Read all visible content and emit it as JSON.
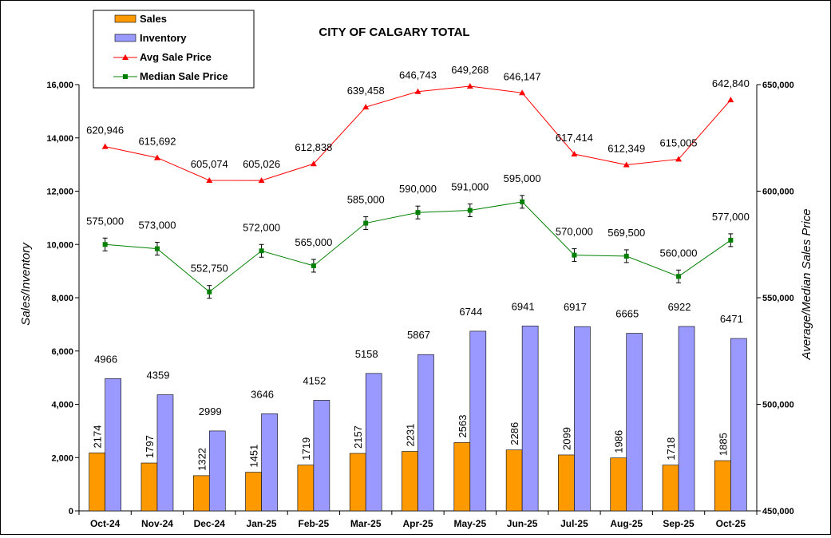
{
  "chart_data": {
    "type": "bar+line",
    "title": "CITY OF CALGARY TOTAL",
    "ylabel_left": "Sales/Inventory",
    "ylabel_right": "Average/Median Sales Price",
    "ylim_left": [
      0,
      16000
    ],
    "ylim_right": [
      450000,
      650000
    ],
    "yticks_left": [
      "0",
      "2,000",
      "4,000",
      "6,000",
      "8,000",
      "10,000",
      "12,000",
      "14,000",
      "16,000"
    ],
    "yticks_right": [
      "450,000",
      "500,000",
      "550,000",
      "600,000",
      "650,000"
    ],
    "categories": [
      "Oct-24",
      "Nov-24",
      "Dec-24",
      "Jan-25",
      "Feb-25",
      "Mar-25",
      "Apr-25",
      "May-25",
      "Jun-25",
      "Jul-25",
      "Aug-25",
      "Sep-25",
      "Oct-25"
    ],
    "series": [
      {
        "name": "Sales",
        "axis": "left",
        "kind": "bar",
        "color": "#FF9900",
        "values": [
          2174,
          1797,
          1322,
          1451,
          1719,
          2157,
          2231,
          2563,
          2286,
          2099,
          1986,
          1718,
          1885
        ],
        "labels": [
          "2174",
          "1797",
          "1322",
          "1451",
          "1719",
          "2157",
          "2231",
          "2563",
          "2286",
          "2099",
          "1986",
          "1718",
          "1885"
        ]
      },
      {
        "name": "Inventory",
        "axis": "left",
        "kind": "bar",
        "color": "#9999FF",
        "values": [
          4966,
          4359,
          2999,
          3646,
          4152,
          5158,
          5867,
          6744,
          6941,
          6917,
          6665,
          6922,
          6471
        ],
        "labels": [
          "4966",
          "4359",
          "2999",
          "3646",
          "4152",
          "5158",
          "5867",
          "6744",
          "6941",
          "6917",
          "6665",
          "6922",
          "6471"
        ]
      },
      {
        "name": "Avg Sale Price",
        "axis": "right",
        "kind": "line",
        "color": "#FF0000",
        "marker": "triangle",
        "values": [
          620946,
          615692,
          605074,
          605026,
          612838,
          639458,
          646743,
          649268,
          646147,
          617414,
          612349,
          615005,
          642840
        ],
        "labels": [
          "620,946",
          "615,692",
          "605,074",
          "605,026",
          "612,838",
          "639,458",
          "646,743",
          "649,268",
          "646,147",
          "617,414",
          "612,349",
          "615,005",
          "642,840"
        ]
      },
      {
        "name": "Median Sale Price",
        "axis": "right",
        "kind": "line",
        "color": "#008000",
        "marker": "square",
        "values": [
          575000,
          573000,
          552750,
          572000,
          565000,
          585000,
          590000,
          591000,
          595000,
          570000,
          569500,
          560000,
          577000
        ],
        "labels": [
          "575,000",
          "573,000",
          "552,750",
          "572,000",
          "565,000",
          "585,000",
          "590,000",
          "591,000",
          "595,000",
          "570,000",
          "569,500",
          "560,000",
          "577,000"
        ]
      }
    ],
    "legend": {
      "placement": "top-left",
      "entries": [
        "Sales",
        "Inventory",
        "Avg Sale Price",
        "Median Sale Price"
      ]
    },
    "grid": false
  }
}
